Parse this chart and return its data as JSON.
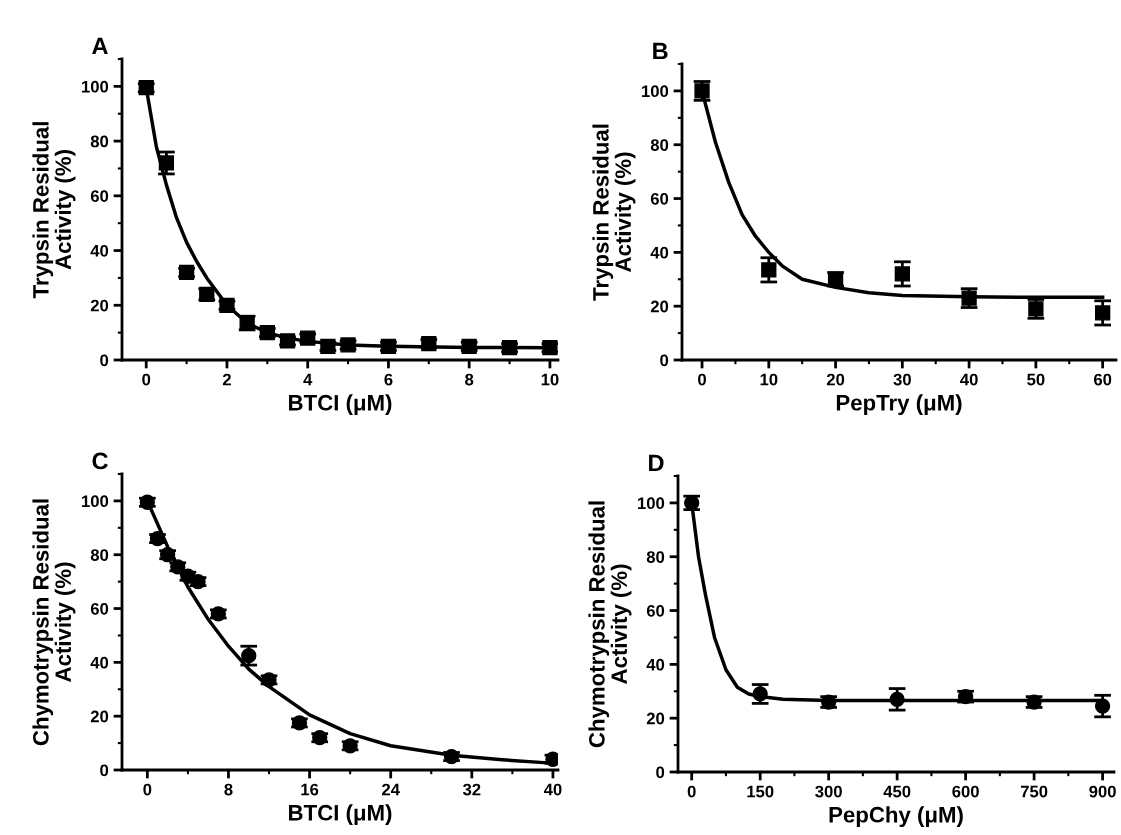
{
  "chart_data": [
    {
      "type": "scatter",
      "title": "A",
      "xlabel": "BTCI (μM)",
      "ylabel": "Trypsin Residual\nActivity (%)",
      "marker": "square",
      "grid": false,
      "legend": false,
      "xlim": [
        -0.6,
        10.2
      ],
      "xticks": [
        0,
        {
          "value": 1,
          "label": null
        },
        2,
        {
          "value": 3,
          "label": null
        },
        4,
        {
          "value": 5,
          "label": null
        },
        6,
        {
          "value": 7,
          "label": null
        },
        8,
        {
          "value": 9,
          "label": null
        },
        10
      ],
      "ylim": [
        0,
        110
      ],
      "yticks": [
        0,
        {
          "value": 10,
          "label": null
        },
        20,
        {
          "value": 30,
          "label": null
        },
        40,
        {
          "value": 50,
          "label": null
        },
        60,
        {
          "value": 70,
          "label": null
        },
        80,
        {
          "value": 90,
          "label": null
        },
        100,
        {
          "value": 110,
          "label": null
        }
      ],
      "series": [
        {
          "color": "#000000",
          "x": [
            0,
            0.5,
            1,
            1.5,
            2,
            2.5,
            3,
            3.5,
            4,
            4.5,
            5,
            6,
            7,
            8,
            9,
            10
          ],
          "values": [
            99.5,
            72,
            32,
            24,
            20,
            13.5,
            10,
            7,
            8,
            5,
            5.5,
            5,
            6,
            5,
            4.5,
            4.5
          ],
          "errors": [
            1.5,
            4,
            1.5,
            2,
            1.5,
            2.5,
            1.5,
            1.5,
            1.5,
            1.5,
            1.5,
            1.5,
            1.5,
            1.5,
            1.5,
            1.5
          ]
        },
        {
          "type": "line",
          "color": "#000000",
          "marker": "none",
          "x": [
            0,
            0.25,
            0.5,
            0.75,
            1,
            1.25,
            1.5,
            2,
            2.5,
            3,
            3.5,
            4,
            5,
            6,
            8,
            10
          ],
          "values": [
            99.5,
            78,
            64,
            52,
            43,
            36,
            30,
            20,
            13.5,
            10,
            8,
            6.8,
            5.5,
            5,
            4.6,
            4.5
          ]
        }
      ]
    },
    {
      "type": "scatter",
      "title": "B",
      "xlabel": "PepTry (μM)",
      "ylabel": "Trypsin Residual\nActivity (%)",
      "marker": "square",
      "grid": false,
      "legend": false,
      "xlim": [
        -3,
        62
      ],
      "xticks": [
        0,
        {
          "value": 5,
          "label": null
        },
        10,
        {
          "value": 15,
          "label": null
        },
        20,
        {
          "value": 25,
          "label": null
        },
        30,
        {
          "value": 35,
          "label": null
        },
        40,
        {
          "value": 45,
          "label": null
        },
        50,
        {
          "value": 55,
          "label": null
        },
        60
      ],
      "ylim": [
        0,
        110
      ],
      "yticks": [
        0,
        {
          "value": 10,
          "label": null
        },
        20,
        {
          "value": 30,
          "label": null
        },
        40,
        {
          "value": 50,
          "label": null
        },
        60,
        {
          "value": 70,
          "label": null
        },
        80,
        {
          "value": 90,
          "label": null
        },
        100,
        {
          "value": 110,
          "label": null
        }
      ],
      "series": [
        {
          "color": "#000000",
          "x": [
            0,
            10,
            20,
            30,
            40,
            50,
            60
          ],
          "values": [
            100,
            33.5,
            30,
            32,
            23,
            19,
            17.5
          ],
          "errors": [
            3.5,
            4.5,
            2.5,
            4.5,
            3.5,
            3.5,
            4.5
          ]
        },
        {
          "type": "line",
          "color": "#000000",
          "marker": "none",
          "x": [
            0,
            2,
            4,
            6,
            8,
            10,
            12,
            15,
            20,
            25,
            30,
            40,
            50,
            60
          ],
          "values": [
            100,
            81,
            66,
            54,
            46,
            40,
            35,
            30,
            27,
            25,
            24,
            23.5,
            23.3,
            23.3
          ]
        }
      ]
    },
    {
      "type": "scatter",
      "title": "C",
      "xlabel": "BTCI (μM)",
      "ylabel": "Chymotrypsin Residual\nActivity (%)",
      "marker": "circle",
      "grid": false,
      "legend": false,
      "xlim": [
        -2.5,
        40.5
      ],
      "xticks": [
        0,
        {
          "value": 4,
          "label": null
        },
        8,
        {
          "value": 12,
          "label": null
        },
        16,
        {
          "value": 20,
          "label": null
        },
        24,
        {
          "value": 28,
          "label": null
        },
        32,
        {
          "value": 36,
          "label": null
        },
        40
      ],
      "ylim": [
        0,
        110
      ],
      "yticks": [
        0,
        {
          "value": 10,
          "label": null
        },
        20,
        {
          "value": 30,
          "label": null
        },
        40,
        {
          "value": 50,
          "label": null
        },
        60,
        {
          "value": 70,
          "label": null
        },
        80,
        {
          "value": 90,
          "label": null
        },
        100,
        {
          "value": 110,
          "label": null
        }
      ],
      "series": [
        {
          "color": "#000000",
          "x": [
            0,
            1,
            2,
            3,
            4,
            5,
            7,
            10,
            12,
            15,
            17,
            20,
            30,
            40
          ],
          "values": [
            99.5,
            86,
            80,
            75.5,
            72,
            70,
            58,
            42.5,
            33.5,
            17.5,
            12,
            9,
            5,
            4
          ],
          "errors": [
            1.5,
            1.5,
            1.5,
            1.5,
            1.5,
            1.5,
            1.5,
            3.5,
            1.5,
            1.5,
            1.5,
            1.5,
            1.5,
            1.5
          ]
        },
        {
          "type": "line",
          "color": "#000000",
          "marker": "none",
          "x": [
            0,
            2,
            4,
            6,
            8,
            10,
            12,
            16,
            20,
            24,
            30,
            35,
            40
          ],
          "values": [
            100,
            83,
            68,
            56,
            46,
            37.5,
            31,
            20.5,
            13.5,
            9,
            5.5,
            3.8,
            2.5
          ]
        }
      ]
    },
    {
      "type": "scatter",
      "title": "D",
      "xlabel": "PepChy (μM)",
      "ylabel": "Chymotrypsin Residual\nActivity (%)",
      "marker": "circle",
      "grid": false,
      "legend": false,
      "xlim": [
        -30,
        925
      ],
      "xticks": [
        0,
        {
          "value": 75,
          "label": null
        },
        150,
        {
          "value": 225,
          "label": null
        },
        300,
        {
          "value": 375,
          "label": null
        },
        450,
        {
          "value": 525,
          "label": null
        },
        600,
        {
          "value": 675,
          "label": null
        },
        750,
        {
          "value": 825,
          "label": null
        },
        900
      ],
      "ylim": [
        0,
        110
      ],
      "yticks": [
        0,
        {
          "value": 10,
          "label": null
        },
        20,
        {
          "value": 30,
          "label": null
        },
        40,
        {
          "value": 50,
          "label": null
        },
        60,
        {
          "value": 70,
          "label": null
        },
        80,
        {
          "value": 90,
          "label": null
        },
        100,
        {
          "value": 110,
          "label": null
        }
      ],
      "series": [
        {
          "color": "#000000",
          "x": [
            0,
            150,
            300,
            450,
            600,
            750,
            900
          ],
          "values": [
            100,
            29,
            26,
            27,
            28,
            26,
            24.5
          ],
          "errors": [
            2.5,
            3.5,
            2,
            4,
            2,
            2,
            4
          ]
        },
        {
          "type": "line",
          "color": "#000000",
          "marker": "none",
          "x": [
            0,
            15,
            30,
            50,
            75,
            100,
            125,
            150,
            200,
            300,
            900
          ],
          "values": [
            100,
            80,
            66,
            50,
            38,
            31.5,
            29,
            28,
            27,
            26.6,
            26.6
          ]
        }
      ]
    }
  ]
}
